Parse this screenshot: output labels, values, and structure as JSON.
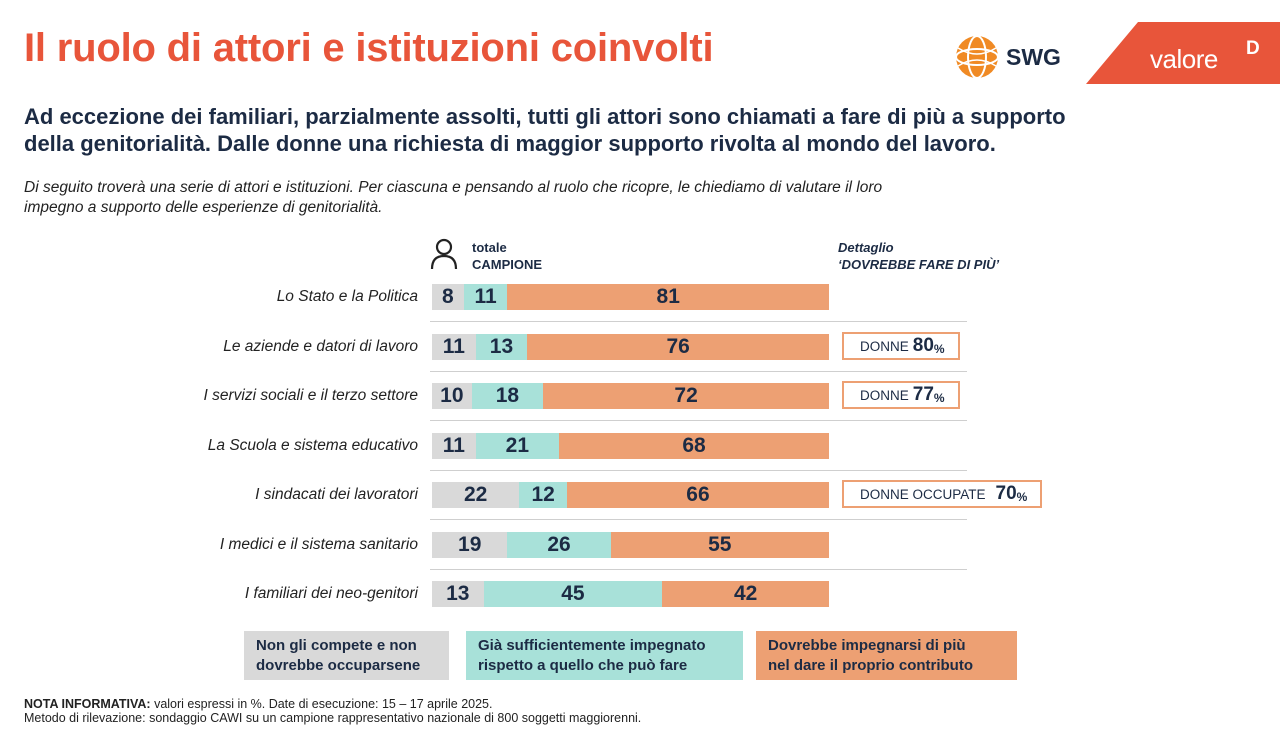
{
  "header": {
    "title": "Il ruolo di attori e istituzioni coinvolti",
    "subtitle_line1": "Ad eccezione dei familiari, parzialmente assolti, tutti gli attori sono chiamati a fare di più a supporto",
    "subtitle_line2": "della genitorialità. Dalle donne una richiesta di maggior supporto rivolta al mondo del lavoro.",
    "question_line1": "Di seguito troverà una serie di attori e istituzioni. Per ciascuna e pensando al ruolo che ricopre, le chiediamo di valutare il loro",
    "question_line2": "impegno a supporto delle esperienze di genitorialità."
  },
  "logos": {
    "swg": "SWG",
    "valored_text": "valore",
    "valored_d": "D"
  },
  "columns": {
    "total_line1": "totale",
    "total_line2": "CAMPIONE",
    "detail_line1": "Dettaglio",
    "detail_line2": "‘DOVREBBE FARE DI PIÙ’"
  },
  "colors": {
    "grey": "#d9d9d9",
    "teal": "#a8e1d9",
    "orange": "#eda073",
    "title": "#e8553a",
    "navy": "#1c2b44"
  },
  "chart_data": {
    "type": "bar",
    "orientation": "horizontal",
    "stacked": true,
    "unit": "%",
    "xlim": [
      0,
      100
    ],
    "categories": [
      "Lo Stato e la Politica",
      "Le aziende e datori di lavoro",
      "I servizi sociali e il terzo settore",
      "La Scuola e sistema educativo",
      "I sindacati dei lavoratori",
      "I medici e il sistema sanitario",
      "I familiari dei neo-genitori"
    ],
    "series": [
      {
        "name": "Non gli compete e non dovrebbe occuparsene",
        "color": "#d9d9d9",
        "values": [
          8,
          11,
          10,
          11,
          22,
          19,
          13
        ]
      },
      {
        "name": "Già sufficientemente impegnato rispetto a quello che può fare",
        "color": "#a8e1d9",
        "values": [
          11,
          13,
          18,
          21,
          12,
          26,
          45
        ]
      },
      {
        "name": "Dovrebbe impegnarsi di più nel dare il proprio contributo",
        "color": "#eda073",
        "values": [
          81,
          76,
          72,
          68,
          66,
          55,
          42
        ]
      }
    ],
    "details": [
      {
        "row": 1,
        "label": "DONNE",
        "value": "80",
        "unit": "%"
      },
      {
        "row": 2,
        "label": "DONNE",
        "value": "77",
        "unit": "%"
      },
      {
        "row": 4,
        "label": "DONNE OCCUPATE",
        "value": "70",
        "unit": "%"
      }
    ],
    "legend": {
      "placement": "bottom",
      "items": [
        {
          "line1": "Non gli compete e non",
          "line2": "dovrebbe occuparsene",
          "color": "#d9d9d9"
        },
        {
          "line1": "Già sufficientemente impegnato",
          "line2": "rispetto a quello che può fare",
          "color": "#a8e1d9"
        },
        {
          "line1": "Dovrebbe impegnarsi di più",
          "line2": "nel dare il proprio contributo",
          "color": "#eda073"
        }
      ]
    }
  },
  "footer": {
    "note_label": "NOTA INFORMATIVA:",
    "note_text": " valori espressi in %. Date di esecuzione: 15 – 17 aprile 2025.",
    "method_text": "Metodo di rilevazione: sondaggio CAWI su un campione rappresentativo nazionale di 800 soggetti maggiorenni."
  }
}
